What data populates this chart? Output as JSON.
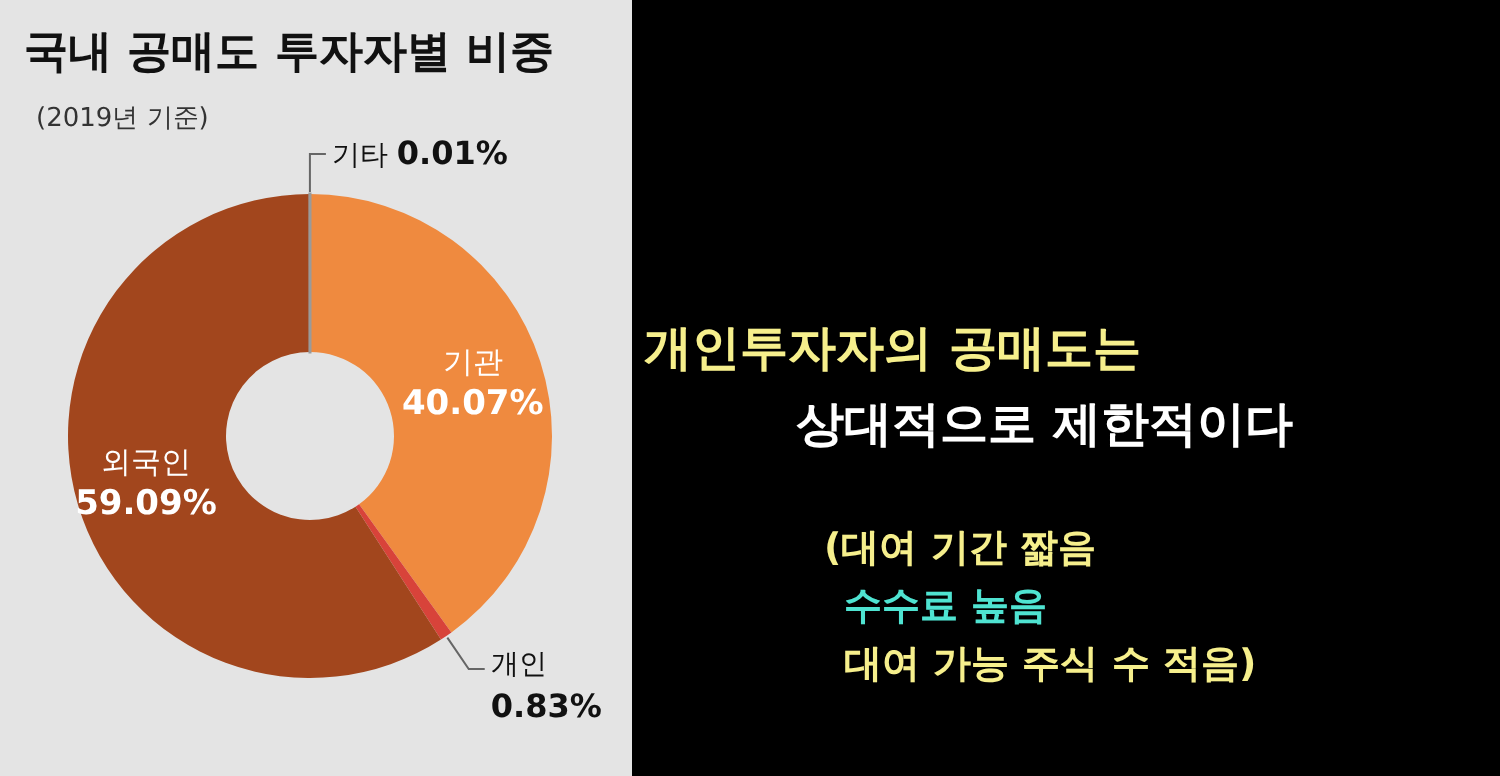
{
  "chart_data": {
    "type": "donut",
    "title": "국내 공매도 투자자별 비중",
    "subtitle": "(2019년 기준)",
    "categories": [
      "기관",
      "개인",
      "외국인",
      "기타"
    ],
    "values": [
      40.07,
      0.83,
      59.09,
      0.01
    ],
    "colors": [
      "#ef8a3f",
      "#d8433a",
      "#a2461d",
      "#9a9a9a"
    ],
    "value_labels": [
      "40.07%",
      "0.83%",
      "59.09%",
      "0.01%"
    ],
    "annotations": [
      "개인투자자의 공매도는",
      "상대적으로 제한적이다",
      "(대여 기간 짧음",
      "수수료 높음",
      "대여 가능 주식 수 적음)"
    ]
  }
}
